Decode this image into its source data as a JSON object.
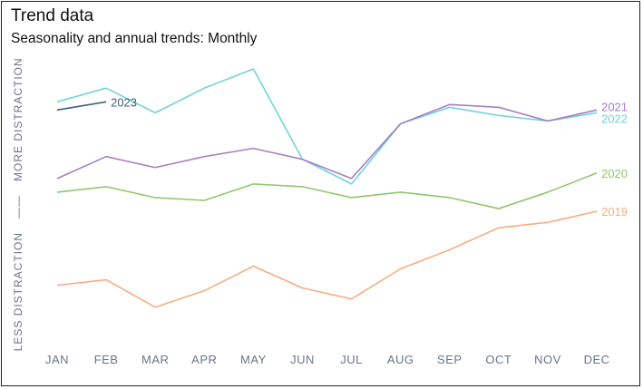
{
  "header": {
    "title": "Trend data",
    "subtitle": "Seasonality and annual trends: Monthly"
  },
  "chart_data": {
    "type": "line",
    "title": "Trend data",
    "subtitle": "Seasonality and annual trends: Monthly",
    "xlabel": "",
    "ylabel_top": "MORE DISTRACTION",
    "ylabel_separator": "——",
    "ylabel_bottom": "LESS DISTRACTION",
    "y_scale": "relative distraction level (unlabeled), 0 = least, 100 = most",
    "ylim": [
      0,
      100
    ],
    "grid": false,
    "legend": "direct labels at line ends",
    "categories": [
      "JAN",
      "FEB",
      "MAR",
      "APR",
      "MAY",
      "JUN",
      "JUL",
      "AUG",
      "SEP",
      "OCT",
      "NOV",
      "DEC"
    ],
    "series": [
      {
        "name": "2023",
        "color": "#3f5f7f",
        "values": [
          83,
          86,
          null,
          null,
          null,
          null,
          null,
          null,
          null,
          null,
          null,
          null
        ]
      },
      {
        "name": "2022",
        "color": "#70d3de",
        "values": [
          86,
          91,
          82,
          91,
          98,
          65,
          56,
          78,
          84,
          81,
          79,
          82
        ]
      },
      {
        "name": "2021",
        "color": "#a77fc5",
        "values": [
          58,
          66,
          62,
          66,
          69,
          65,
          58,
          78,
          85,
          84,
          79,
          83
        ]
      },
      {
        "name": "2020",
        "color": "#8fc86b",
        "values": [
          53,
          55,
          51,
          50,
          56,
          55,
          51,
          53,
          51,
          47,
          53,
          60
        ]
      },
      {
        "name": "2019",
        "color": "#f7ad82",
        "values": [
          19,
          21,
          11,
          17,
          26,
          18,
          14,
          25,
          32,
          40,
          42,
          46
        ]
      }
    ]
  }
}
